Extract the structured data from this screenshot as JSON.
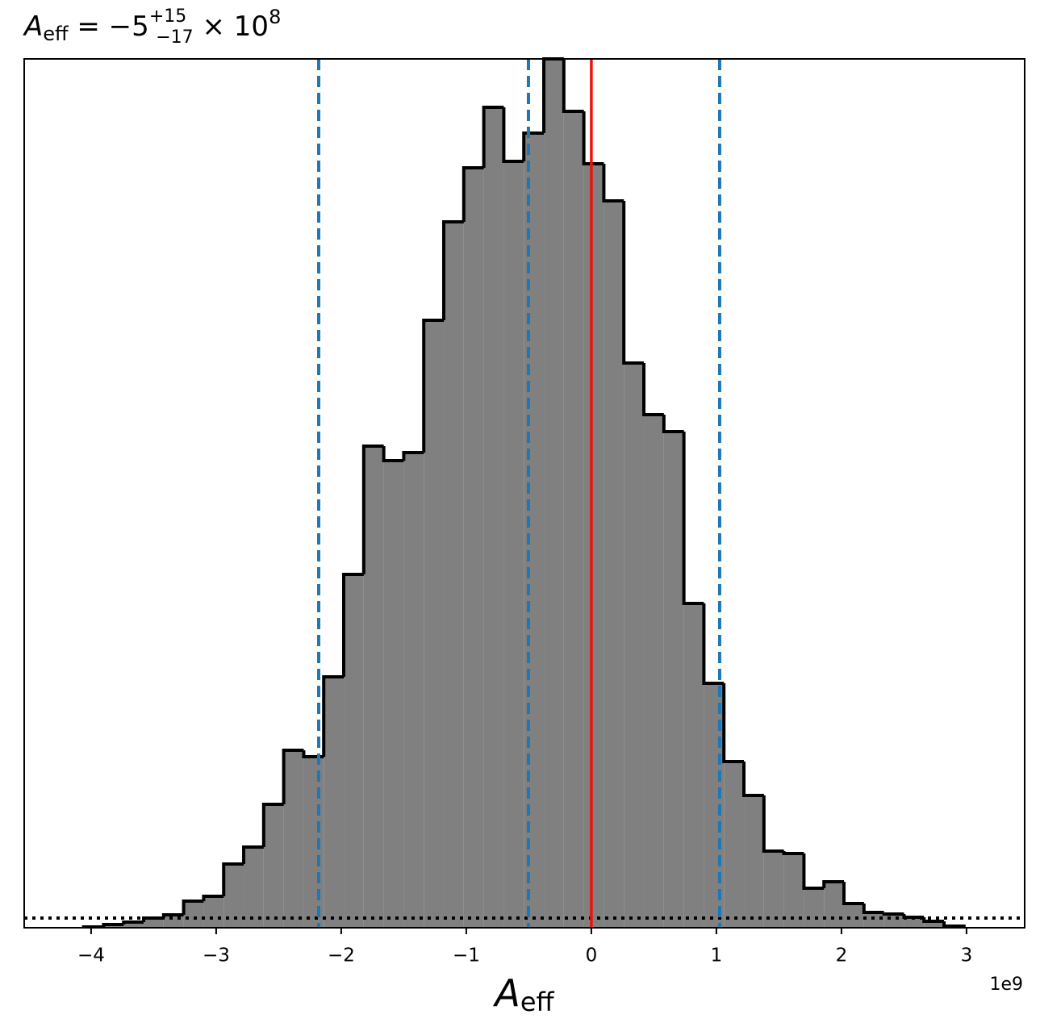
{
  "chart_data": {
    "type": "histogram",
    "title": {
      "base": "A",
      "sub": "eff",
      "eq": " = −5",
      "sup": "+15",
      "sub2": "−17",
      "tail": " × 10",
      "exp": "8"
    },
    "x_label": {
      "base": "A",
      "sub": "eff"
    },
    "x_offset_label": "1e9",
    "bins": [
      -4.06,
      -3.9,
      -3.74,
      -3.58,
      -3.42,
      -3.26,
      -3.1,
      -2.94,
      -2.78,
      -2.62,
      -2.46,
      -2.3,
      -2.14,
      -1.98,
      -1.82,
      -1.66,
      -1.5,
      -1.34,
      -1.18,
      -1.02,
      -0.86,
      -0.7,
      -0.54,
      -0.38,
      -0.22,
      -0.06,
      0.1,
      0.26,
      0.42,
      0.58,
      0.74,
      0.9,
      1.06,
      1.22,
      1.38,
      1.54,
      1.7,
      1.86,
      2.02,
      2.18,
      2.34,
      2.5,
      2.66,
      2.82,
      2.98
    ],
    "values": [
      1,
      4,
      7,
      12,
      16,
      33,
      39,
      79,
      100,
      153,
      220,
      212,
      311,
      438,
      597,
      579,
      589,
      753,
      875,
      942,
      1017,
      950,
      985,
      1077,
      1012,
      947,
      901,
      700,
      636,
      615,
      402,
      303,
      206,
      164,
      95,
      92,
      49,
      57,
      30,
      19,
      17,
      13,
      8,
      2
    ],
    "color": "#808080",
    "edge_color": "#000000",
    "quantiles": [
      -2.18,
      -0.503,
      1.026
    ],
    "quantile_color": "#1f77b4",
    "truth": 0,
    "truth_color": "#ee1111",
    "baseline_level": 12,
    "xlim": [
      -4.535,
      3.465
    ],
    "ylim": [
      0,
      1077
    ],
    "xticks": [
      {
        "value": -4,
        "label": "−4"
      },
      {
        "value": -3,
        "label": "−3"
      },
      {
        "value": -2,
        "label": "−2"
      },
      {
        "value": -1,
        "label": "−1"
      },
      0,
      1,
      2,
      3
    ]
  }
}
